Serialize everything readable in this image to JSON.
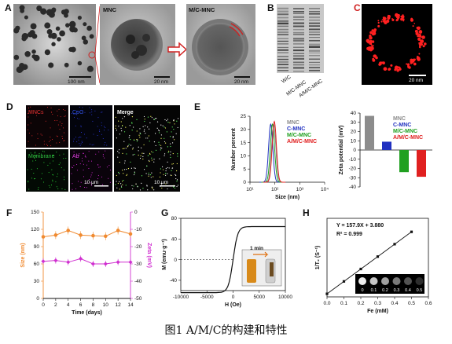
{
  "figure": {
    "caption": "图1 A/M/C的构建和特性",
    "panels": {
      "A": {
        "letter": "A",
        "label_mnc": "MNC",
        "label_mcmnc": "M/C-MNC",
        "scale_1": "100 nm",
        "scale_2": "20 nm",
        "scale_3": "20 nm"
      },
      "B": {
        "letter": "B",
        "lanes": [
          "W/C",
          "M/C-MNC",
          "A/M/C-MNC"
        ]
      },
      "C": {
        "letter": "C",
        "scale": "20 nm"
      },
      "D": {
        "letter": "D",
        "tiles": [
          "MNCs",
          "CpG",
          "Membrane",
          "Ab"
        ],
        "merge": "Merge",
        "scale_1": "10 μm",
        "scale_2": "10 μm"
      },
      "E": {
        "letter": "E"
      },
      "F": {
        "letter": "F"
      },
      "G": {
        "letter": "G",
        "inset_label": "1 min"
      },
      "H": {
        "letter": "H",
        "equation": "Y = 157.9X + 3.880",
        "r2": "R² = 0.999",
        "legend_scale": [
          "0",
          "0.1",
          "0.2",
          "0.3",
          "0.4",
          "0.5"
        ]
      }
    }
  },
  "chart_data": [
    {
      "panel": "E-size",
      "type": "line",
      "xlabel": "Size (nm)",
      "ylabel": "Number percent",
      "xscale": "log",
      "xlim": [
        10,
        10000
      ],
      "ylim": [
        0,
        25
      ],
      "xticks": [
        "10¹",
        "10²",
        "10³",
        "10⁴"
      ],
      "yticks": [
        0,
        5,
        10,
        15,
        20,
        25
      ],
      "legend": "top-right",
      "series": [
        {
          "name": "MNC",
          "color": "#8c8c8c",
          "peak_x": 90,
          "peak_y": 22
        },
        {
          "name": "C-MNC",
          "color": "#2030c0",
          "peak_x": 68,
          "peak_y": 22
        },
        {
          "name": "M/C-MNC",
          "color": "#20a020",
          "peak_x": 80,
          "peak_y": 22
        },
        {
          "name": "A/M/C-MNC",
          "color": "#e02020",
          "peak_x": 95,
          "peak_y": 23
        }
      ]
    },
    {
      "panel": "E-zeta",
      "type": "bar",
      "ylabel": "Zeta potential (mV)",
      "ylim": [
        -40,
        40
      ],
      "yticks": [
        -40,
        -30,
        -20,
        -10,
        0,
        10,
        20,
        30,
        40
      ],
      "categories": [
        "MNC",
        "C-MNC",
        "M/C-MNC",
        "A/M/C-MNC"
      ],
      "values": [
        37,
        9,
        -24,
        -29
      ],
      "colors": [
        "#8c8c8c",
        "#2030c0",
        "#20a020",
        "#e02020"
      ]
    },
    {
      "panel": "F",
      "type": "line",
      "xlabel": "Time (days)",
      "ylabel": "Size (nm)",
      "y2label": "Zeta (mV)",
      "xlim": [
        0,
        14
      ],
      "ylim": [
        0,
        150
      ],
      "y2lim": [
        -50,
        0
      ],
      "xticks": [
        0,
        2,
        4,
        6,
        8,
        10,
        12,
        14
      ],
      "yticks": [
        0,
        30,
        60,
        90,
        120,
        150
      ],
      "y2ticks": [
        0,
        -10,
        -20,
        -30,
        -40,
        -50
      ],
      "x": [
        0,
        2,
        4,
        6,
        8,
        10,
        12,
        14
      ],
      "series": [
        {
          "name": "Size (nm)",
          "color": "#f08a30",
          "values": [
            107,
            110,
            118,
            110,
            109,
            108,
            118,
            112
          ]
        },
        {
          "name": "Zeta (mV)",
          "color": "#d030d0",
          "values": [
            -28.5,
            -28,
            -29,
            -27,
            -30,
            -30,
            -29,
            -29
          ]
        }
      ]
    },
    {
      "panel": "G",
      "type": "line",
      "xlabel": "H (Oe)",
      "ylabel": "M (emu·g⁻¹)",
      "xlim": [
        -10000,
        10000
      ],
      "ylim": [
        -60,
        80
      ],
      "xticks": [
        -10000,
        -5000,
        0,
        5000,
        10000
      ],
      "yticks": [
        -40,
        0,
        40,
        80
      ],
      "series": [
        {
          "name": "",
          "color": "#111111",
          "saturation": 64
        }
      ]
    },
    {
      "panel": "H",
      "type": "scatter",
      "xlabel": "Fe (mM)",
      "ylabel": "1/T₂ (S⁻¹)",
      "xlim": [
        0,
        0.6
      ],
      "ylim": [
        0,
        100
      ],
      "xticks": [
        0.0,
        0.1,
        0.2,
        0.3,
        0.4,
        0.5,
        0.6
      ],
      "yticks": [
        0,
        20,
        40,
        60,
        80,
        100
      ],
      "x": [
        0,
        0.1,
        0.2,
        0.3,
        0.4,
        0.5
      ],
      "y": [
        3.9,
        19.7,
        35.5,
        51.3,
        67.1,
        82.8
      ],
      "fit": {
        "slope": 157.9,
        "intercept": 3.88
      }
    }
  ]
}
